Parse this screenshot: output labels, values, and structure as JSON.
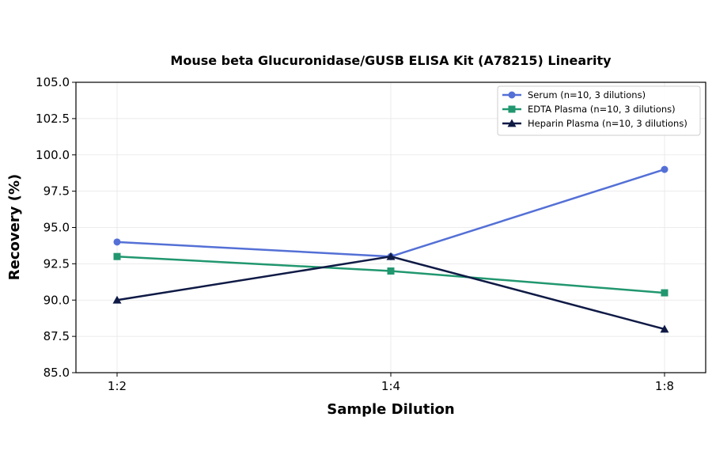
{
  "chart_data": {
    "type": "line",
    "title": "Mouse beta Glucuronidase/GUSB ELISA Kit (A78215) Linearity",
    "xlabel": "Sample Dilution",
    "ylabel": "Recovery (%)",
    "categories": [
      "1:2",
      "1:4",
      "1:8"
    ],
    "ylim": [
      85.0,
      105.0
    ],
    "yticks": [
      "85.0",
      "87.5",
      "90.0",
      "92.5",
      "95.0",
      "97.5",
      "100.0",
      "102.5",
      "105.0"
    ],
    "grid": true,
    "legend_position": "top-right",
    "series": [
      {
        "name": "Serum (n=10, 3 dilutions)",
        "values": [
          94.0,
          93.0,
          99.0
        ],
        "color": "#5470d6",
        "marker": "circle"
      },
      {
        "name": "EDTA Plasma (n=10, 3 dilutions)",
        "values": [
          93.0,
          92.0,
          90.5
        ],
        "color": "#21976f",
        "marker": "square"
      },
      {
        "name": "Heparin Plasma (n=10, 3 dilutions)",
        "values": [
          90.0,
          93.0,
          88.0
        ],
        "color": "#0f1a45",
        "marker": "triangle"
      }
    ]
  }
}
